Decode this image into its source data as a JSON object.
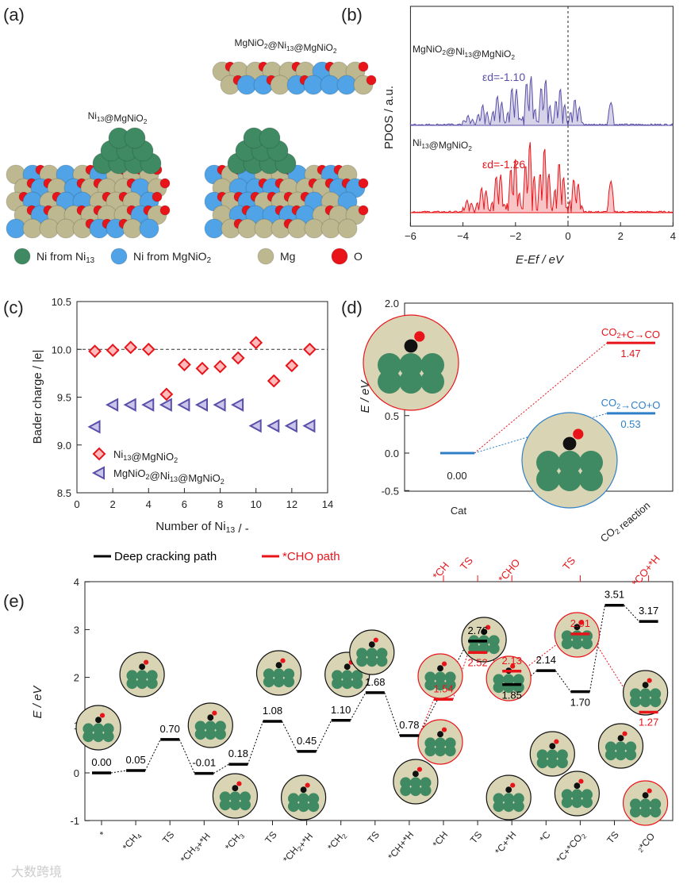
{
  "panel_labels": [
    "(a)",
    "(b)",
    "(c)",
    "(d)",
    "(e)"
  ],
  "panel_a": {
    "structure_left": "Ni13@MgNiO2",
    "structure_right": "MgNiO2@Ni13@MgNiO2",
    "legend": [
      {
        "label": "Ni from Ni13",
        "color": "#3f8a62"
      },
      {
        "label": "Ni from MgNiO2",
        "color": "#4fa3e6"
      },
      {
        "label": "Mg",
        "color": "#bdb890"
      },
      {
        "label": "O",
        "color": "#e8141a"
      }
    ]
  },
  "chart_data": [
    {
      "id": "b",
      "type": "area",
      "xlabel": "E-Ef / eV",
      "ylabel": "PDOS / a.u.",
      "xlim": [
        -6,
        4
      ],
      "xticks": [
        -6,
        -4,
        -2,
        0,
        2,
        4
      ],
      "fermi_line": 0,
      "series": [
        {
          "name": "MgNiO2@Ni13@MgNiO2",
          "annotation": "εd=-1.10",
          "d_band_center": -1.1,
          "color": "#5a4fa8"
        },
        {
          "name": "Ni13@MgNiO2",
          "annotation": "εd=-1.26",
          "d_band_center": -1.26,
          "color": "#e8141a"
        }
      ]
    },
    {
      "id": "c",
      "type": "scatter",
      "xlabel": "Number of Ni13 / -",
      "ylabel": "Bader charge / |e|",
      "xlim": [
        0,
        14
      ],
      "ylim": [
        8.5,
        10.5
      ],
      "xticks": [
        0,
        2,
        4,
        6,
        8,
        10,
        12,
        14
      ],
      "yticks": [
        8.5,
        9.0,
        9.5,
        10.0,
        10.5
      ],
      "reference_line": 10.0,
      "legend_position": "bottom-left",
      "x": [
        1,
        2,
        3,
        4,
        5,
        6,
        7,
        8,
        9,
        10,
        11,
        12,
        13
      ],
      "series": [
        {
          "name": "Ni13@MgNiO2",
          "marker": "diamond",
          "color": "#e8141a",
          "values": [
            9.98,
            9.99,
            10.02,
            10.0,
            9.53,
            9.84,
            9.8,
            9.82,
            9.91,
            10.07,
            9.67,
            9.83,
            10.0
          ]
        },
        {
          "name": "MgNiO2@Ni13@MgNiO2",
          "marker": "triangle-left",
          "color": "#5a4fa8",
          "values": [
            9.19,
            9.42,
            9.42,
            9.42,
            9.42,
            9.42,
            9.42,
            9.42,
            9.42,
            9.2,
            9.2,
            9.2,
            9.2
          ]
        }
      ]
    },
    {
      "id": "d",
      "type": "line",
      "ylabel": "E / eV",
      "ylim": [
        -0.5,
        2.0
      ],
      "yticks": [
        -0.5,
        0.0,
        0.5,
        1.0,
        1.5,
        2.0
      ],
      "categories": [
        "Cat",
        "CO2 reaction"
      ],
      "levels": [
        {
          "name": "Cat",
          "value": 0.0,
          "label": "0.00",
          "color": "#2f7fc7"
        },
        {
          "name": "CO2+C→CO",
          "value": 1.47,
          "label": "1.47",
          "color": "#e8141a"
        },
        {
          "name": "CO2→CO+O",
          "value": 0.53,
          "label": "0.53",
          "color": "#2f7fc7"
        }
      ]
    },
    {
      "id": "e",
      "type": "line",
      "ylabel": "E / eV",
      "ylim": [
        -1,
        4
      ],
      "yticks": [
        -1,
        0,
        1,
        2,
        3,
        4
      ],
      "legend": [
        {
          "name": "Deep cracking path",
          "color": "#000000"
        },
        {
          "name": "*CHO path",
          "color": "#e8141a"
        }
      ],
      "categories": [
        "*",
        "*CH4",
        "TS",
        "*CH3+*H",
        "*CH3",
        "TS",
        "*CH2+*H",
        "*CH2",
        "TS",
        "*CH+*H",
        "*CH",
        "TS",
        "*C+*H",
        "*C",
        "*C+*CO2",
        "TS",
        "2*CO"
      ],
      "top_labels": [
        {
          "index": 10,
          "label": "*CH"
        },
        {
          "index": 11,
          "label": "TS"
        },
        {
          "index": 12,
          "label": "*CHO"
        },
        {
          "index": 14,
          "label": "TS"
        },
        {
          "index": 16,
          "label": "*CO+*H"
        }
      ],
      "series": [
        {
          "name": "Deep cracking path",
          "color": "#000000",
          "points": [
            [
              0,
              0.0
            ],
            [
              1,
              0.05
            ],
            [
              2,
              0.7
            ],
            [
              3,
              -0.01
            ],
            [
              4,
              0.18
            ],
            [
              5,
              1.08
            ],
            [
              6,
              0.45
            ],
            [
              7,
              1.1
            ],
            [
              8,
              1.68
            ],
            [
              9,
              0.78
            ],
            [
              11,
              2.76
            ],
            [
              12,
              1.85
            ],
            [
              13,
              2.14
            ],
            [
              14,
              1.7
            ],
            [
              15,
              3.51
            ],
            [
              16,
              3.17
            ]
          ],
          "labels": [
            "0.00",
            "0.05",
            "0.70",
            "-0.01",
            "0.18",
            "1.08",
            "0.45",
            "1.10",
            "1.68",
            "0.78",
            "2.76",
            "1.85",
            "2.14",
            "1.70",
            "3.51",
            "3.17"
          ]
        },
        {
          "name": "*CHO path",
          "color": "#e8141a",
          "points": [
            [
              10,
              1.54
            ],
            [
              11,
              2.52
            ],
            [
              12,
              2.13
            ],
            [
              14,
              2.91
            ],
            [
              16,
              1.27
            ]
          ],
          "labels": [
            "1.54",
            "2.52",
            "2.13",
            "2.91",
            "1.27"
          ]
        }
      ]
    }
  ],
  "watermark": "大数跨境"
}
